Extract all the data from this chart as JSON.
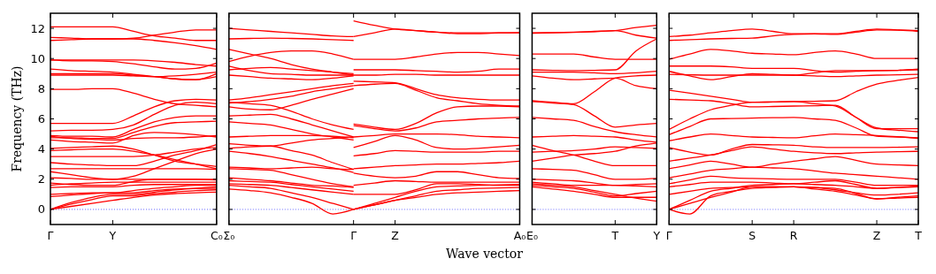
{
  "chart_data": [
    {
      "type": "line",
      "ylabel": "Frequency (THz)",
      "ylim": [
        -1,
        13
      ],
      "yticks": [
        0,
        2,
        4,
        6,
        8,
        10,
        12
      ],
      "categories": [
        "Γ",
        null,
        null,
        "Y",
        null,
        null,
        null,
        null,
        "C₀"
      ],
      "ref_lines": [
        {
          "axis": "y",
          "value": 0,
          "color": "#0000ff",
          "line_style": "dotted"
        }
      ],
      "series": [
        {
          "color": "#ff0000",
          "values": [
            12.1,
            12.1,
            12.1,
            12.1,
            11.8,
            11.5,
            11.35,
            11.2,
            11.2
          ]
        },
        {
          "color": "#ff0000",
          "values": [
            11.4,
            11.35,
            11.3,
            11.3,
            11.35,
            11.55,
            11.75,
            11.9,
            11.9
          ]
        },
        {
          "color": "#ff0000",
          "values": [
            11.2,
            11.25,
            11.3,
            11.3,
            11.3,
            11.2,
            11.05,
            10.85,
            10.6
          ]
        },
        {
          "color": "#ff0000",
          "values": [
            9.9,
            9.9,
            9.9,
            9.9,
            9.9,
            9.85,
            9.75,
            9.6,
            9.5
          ]
        },
        {
          "color": "#ff0000",
          "values": [
            9.9,
            9.85,
            9.85,
            9.8,
            9.65,
            9.45,
            9.3,
            9.35,
            9.7
          ]
        },
        {
          "color": "#ff0000",
          "values": [
            9.3,
            9.2,
            9.15,
            9.1,
            8.95,
            8.8,
            8.65,
            8.6,
            9.0
          ]
        },
        {
          "color": "#ff0000",
          "values": [
            9.0,
            9.0,
            9.0,
            9.0,
            8.9,
            8.8,
            8.65,
            8.6,
            8.8
          ]
        },
        {
          "color": "#ff0000",
          "values": [
            8.9,
            8.9,
            8.9,
            8.9,
            8.85,
            8.8,
            8.85,
            8.95,
            9.1
          ]
        },
        {
          "color": "#ff0000",
          "values": [
            7.95,
            7.95,
            8.0,
            8.0,
            7.7,
            7.3,
            7.0,
            6.9,
            6.8
          ]
        },
        {
          "color": "#ff0000",
          "values": [
            5.7,
            5.7,
            5.7,
            5.7,
            6.2,
            6.8,
            7.2,
            7.3,
            7.25
          ]
        },
        {
          "color": "#ff0000",
          "values": [
            5.2,
            5.25,
            5.25,
            5.3,
            5.6,
            6.3,
            6.9,
            7.1,
            7.0
          ]
        },
        {
          "color": "#ff0000",
          "values": [
            4.9,
            4.85,
            4.85,
            4.8,
            5.3,
            5.8,
            6.1,
            6.2,
            6.2
          ]
        },
        {
          "color": "#ff0000",
          "values": [
            4.75,
            4.75,
            4.7,
            4.7,
            5.1,
            5.5,
            5.75,
            5.8,
            5.85
          ]
        },
        {
          "color": "#ff0000",
          "values": [
            4.6,
            4.5,
            4.45,
            4.4,
            4.9,
            5.1,
            5.05,
            4.95,
            4.8
          ]
        },
        {
          "color": "#ff0000",
          "values": [
            4.85,
            4.7,
            4.65,
            4.6,
            4.7,
            4.75,
            4.75,
            4.8,
            4.9
          ]
        },
        {
          "color": "#ff0000",
          "values": [
            4.05,
            4.1,
            4.15,
            4.2,
            4.0,
            3.6,
            3.2,
            3.0,
            2.85
          ]
        },
        {
          "color": "#ff0000",
          "values": [
            3.9,
            3.95,
            4.0,
            4.0,
            3.85,
            3.6,
            3.3,
            3.0,
            2.7
          ]
        },
        {
          "color": "#ff0000",
          "values": [
            3.5,
            3.5,
            3.5,
            3.5,
            3.5,
            3.6,
            3.8,
            4.0,
            4.1
          ]
        },
        {
          "color": "#ff0000",
          "values": [
            3.1,
            3.0,
            2.95,
            2.9,
            2.9,
            3.2,
            3.6,
            3.9,
            4.3
          ]
        },
        {
          "color": "#ff0000",
          "values": [
            2.7,
            2.7,
            2.7,
            2.7,
            2.7,
            2.7,
            2.7,
            2.7,
            2.65
          ]
        },
        {
          "color": "#ff0000",
          "values": [
            2.5,
            2.3,
            2.1,
            2.0,
            2.2,
            2.7,
            3.2,
            3.7,
            4.0
          ]
        },
        {
          "color": "#ff0000",
          "values": [
            2.1,
            2.05,
            2.0,
            2.0,
            2.0,
            2.0,
            2.0,
            2.0,
            2.0
          ]
        },
        {
          "color": "#ff0000",
          "values": [
            1.75,
            1.65,
            1.6,
            1.6,
            1.85,
            2.0,
            2.0,
            2.0,
            1.95
          ]
        },
        {
          "color": "#ff0000",
          "values": [
            1.6,
            1.7,
            1.75,
            1.8,
            1.8,
            1.8,
            1.8,
            1.8,
            1.8
          ]
        },
        {
          "color": "#ff0000",
          "values": [
            1.45,
            1.5,
            1.5,
            1.5,
            1.6,
            1.65,
            1.65,
            1.65,
            1.65
          ]
        },
        {
          "color": "#ff0000",
          "values": [
            1.0,
            1.05,
            1.1,
            1.1,
            1.25,
            1.4,
            1.5,
            1.6,
            1.6
          ]
        },
        {
          "color": "#ff0000",
          "values": [
            0.85,
            0.95,
            1.05,
            1.1,
            1.1,
            1.25,
            1.35,
            1.4,
            1.4
          ]
        },
        {
          "color": "#ff0000",
          "values": [
            0,
            0.45,
            0.8,
            1.0,
            1.0,
            1.15,
            1.3,
            1.4,
            1.5
          ]
        },
        {
          "color": "#ff0000",
          "values": [
            0,
            0.35,
            0.65,
            0.9,
            0.9,
            1.05,
            1.15,
            1.25,
            1.3
          ]
        },
        {
          "color": "#ff0000",
          "values": [
            0,
            0.2,
            0.4,
            0.6,
            0.8,
            0.95,
            1.05,
            1.1,
            1.15
          ]
        }
      ]
    },
    {
      "type": "line",
      "tick_labels": "x",
      "ylim": [
        -1,
        13
      ],
      "yticks": [
        0,
        2,
        4,
        6,
        8,
        10,
        12
      ],
      "categories": [
        "Σ₀",
        null,
        null,
        null,
        null,
        null,
        "Γ",
        null,
        "Z",
        null,
        null,
        null,
        null,
        null,
        "A₀"
      ],
      "ref_lines": [
        {
          "axis": "y",
          "value": 0,
          "color": "#0000ff",
          "line_style": "dotted"
        }
      ],
      "series": [
        {
          "color": "#ff0000",
          "values": [
            12.0,
            11.9,
            11.8,
            11.7,
            11.6,
            11.5,
            11.45,
            null,
            null,
            null,
            null,
            null,
            null,
            null,
            null
          ]
        },
        {
          "color": "#ff0000",
          "values": [
            11.3,
            11.33,
            11.35,
            11.33,
            11.3,
            11.25,
            11.2,
            null,
            null,
            null,
            null,
            null,
            null,
            null,
            null
          ]
        },
        {
          "color": "#ff0000",
          "values": [
            10.6,
            10.3,
            10.0,
            9.6,
            9.3,
            9.1,
            8.9,
            null,
            null,
            null,
            null,
            null,
            null,
            null,
            null
          ]
        },
        {
          "color": "#ff0000",
          "values": [
            9.8,
            10.15,
            10.4,
            10.5,
            10.5,
            10.3,
            9.95,
            null,
            null,
            null,
            null,
            null,
            null,
            null,
            null
          ]
        },
        {
          "color": "#ff0000",
          "values": [
            9.5,
            9.2,
            9.0,
            8.95,
            8.9,
            8.9,
            8.9,
            null,
            null,
            null,
            null,
            null,
            null,
            null,
            null
          ]
        },
        {
          "color": "#ff0000",
          "values": [
            9.25,
            9.35,
            9.4,
            9.3,
            9.2,
            9.1,
            9.0,
            null,
            null,
            null,
            null,
            null,
            null,
            null,
            null
          ]
        },
        {
          "color": "#ff0000",
          "values": [
            8.9,
            8.8,
            8.7,
            8.65,
            8.6,
            8.7,
            8.85,
            null,
            null,
            null,
            null,
            null,
            null,
            null,
            null
          ]
        },
        {
          "color": "#ff0000",
          "values": [
            7.25,
            7.4,
            7.6,
            7.8,
            8.0,
            8.2,
            8.35,
            null,
            null,
            null,
            null,
            null,
            null,
            null,
            null
          ]
        },
        {
          "color": "#ff0000",
          "values": [
            7.05,
            7.15,
            7.3,
            7.5,
            7.8,
            8.0,
            8.2,
            null,
            null,
            null,
            null,
            null,
            null,
            null,
            null
          ]
        },
        {
          "color": "#ff0000",
          "values": [
            6.8,
            6.65,
            6.6,
            6.9,
            7.3,
            7.65,
            8.0,
            null,
            null,
            null,
            null,
            null,
            null,
            null,
            null
          ]
        },
        {
          "color": "#ff0000",
          "values": [
            7.1,
            7.0,
            6.9,
            6.5,
            6.0,
            5.6,
            5.3,
            null,
            null,
            null,
            null,
            null,
            null,
            null,
            null
          ]
        },
        {
          "color": "#ff0000",
          "values": [
            6.2,
            6.25,
            6.3,
            6.0,
            5.6,
            5.2,
            4.8,
            null,
            null,
            null,
            null,
            null,
            null,
            null,
            null
          ]
        },
        {
          "color": "#ff0000",
          "values": [
            5.8,
            5.7,
            5.6,
            5.3,
            5.0,
            4.8,
            4.6,
            null,
            null,
            null,
            null,
            null,
            null,
            null,
            null
          ]
        },
        {
          "color": "#ff0000",
          "values": [
            4.8,
            4.85,
            4.9,
            4.9,
            4.9,
            4.85,
            4.75,
            null,
            null,
            null,
            null,
            null,
            null,
            null,
            null
          ]
        },
        {
          "color": "#ff0000",
          "values": [
            4.35,
            4.25,
            4.2,
            4.4,
            4.6,
            4.7,
            4.8,
            null,
            null,
            null,
            null,
            null,
            null,
            null,
            null
          ]
        },
        {
          "color": "#ff0000",
          "values": [
            4.05,
            4.15,
            4.2,
            3.9,
            3.6,
            3.1,
            2.65,
            null,
            null,
            null,
            null,
            null,
            null,
            null,
            null
          ]
        },
        {
          "color": "#ff0000",
          "values": [
            3.85,
            3.7,
            3.5,
            3.25,
            3.0,
            2.75,
            2.45,
            null,
            null,
            null,
            null,
            null,
            null,
            null,
            null
          ]
        },
        {
          "color": "#ff0000",
          "values": [
            2.8,
            2.75,
            2.7,
            2.75,
            2.8,
            2.7,
            2.65,
            null,
            null,
            null,
            null,
            null,
            null,
            null,
            null
          ]
        },
        {
          "color": "#ff0000",
          "values": [
            2.7,
            2.65,
            2.6,
            2.3,
            2.0,
            1.7,
            1.5,
            null,
            null,
            null,
            null,
            null,
            null,
            null,
            null
          ]
        },
        {
          "color": "#ff0000",
          "values": [
            2.1,
            2.0,
            1.9,
            1.75,
            1.6,
            1.55,
            1.45,
            null,
            null,
            null,
            null,
            null,
            null,
            null,
            null
          ]
        },
        {
          "color": "#ff0000",
          "values": [
            1.9,
            1.85,
            1.8,
            1.65,
            1.5,
            1.35,
            1.2,
            null,
            null,
            null,
            null,
            null,
            null,
            null,
            null
          ]
        },
        {
          "color": "#ff0000",
          "values": [
            1.7,
            1.65,
            1.6,
            1.45,
            1.3,
            1.15,
            1.0,
            null,
            null,
            null,
            null,
            null,
            null,
            null,
            null
          ]
        },
        {
          "color": "#ff0000",
          "values": [
            1.6,
            1.5,
            1.4,
            1.1,
            0.8,
            0.4,
            0,
            null,
            null,
            null,
            null,
            null,
            null,
            null,
            null
          ]
        },
        {
          "color": "#ff0000",
          "values": [
            1.35,
            1.25,
            1.1,
            0.8,
            0.4,
            -0.3,
            0,
            null,
            null,
            null,
            null,
            null,
            null,
            null,
            null
          ]
        },
        {
          "color": "#ff0000",
          "values": [
            null,
            null,
            null,
            null,
            null,
            null,
            12.5,
            12.2,
            11.95,
            11.85,
            11.75,
            11.7,
            11.7,
            11.7,
            11.7
          ]
        },
        {
          "color": "#ff0000",
          "values": [
            null,
            null,
            null,
            null,
            null,
            null,
            11.45,
            11.7,
            11.95,
            11.85,
            11.75,
            11.65,
            11.65,
            11.7,
            11.72
          ]
        },
        {
          "color": "#ff0000",
          "values": [
            null,
            null,
            null,
            null,
            null,
            null,
            9.95,
            9.95,
            9.95,
            10.1,
            10.3,
            10.4,
            10.4,
            10.3,
            10.2
          ]
        },
        {
          "color": "#ff0000",
          "values": [
            null,
            null,
            null,
            null,
            null,
            null,
            9.25,
            9.25,
            9.25,
            9.2,
            9.15,
            9.1,
            9.15,
            9.3,
            9.3
          ]
        },
        {
          "color": "#ff0000",
          "values": [
            null,
            null,
            null,
            null,
            null,
            null,
            8.9,
            8.9,
            8.95,
            8.95,
            8.9,
            8.9,
            8.9,
            8.9,
            8.9
          ]
        },
        {
          "color": "#ff0000",
          "values": [
            null,
            null,
            null,
            null,
            null,
            null,
            8.5,
            8.45,
            8.4,
            8.0,
            7.6,
            7.4,
            7.3,
            7.25,
            7.25
          ]
        },
        {
          "color": "#ff0000",
          "values": [
            null,
            null,
            null,
            null,
            null,
            null,
            8.2,
            8.3,
            8.35,
            7.9,
            7.4,
            7.2,
            7.0,
            6.9,
            6.85
          ]
        },
        {
          "color": "#ff0000",
          "values": [
            null,
            null,
            null,
            null,
            null,
            null,
            5.65,
            5.45,
            5.3,
            5.7,
            6.4,
            6.8,
            6.85,
            6.85,
            6.8
          ]
        },
        {
          "color": "#ff0000",
          "values": [
            null,
            null,
            null,
            null,
            null,
            null,
            5.55,
            5.35,
            5.2,
            5.4,
            5.8,
            5.9,
            6.0,
            6.05,
            6.1
          ]
        },
        {
          "color": "#ff0000",
          "values": [
            null,
            null,
            null,
            null,
            null,
            null,
            4.8,
            4.9,
            5.0,
            5.0,
            5.0,
            4.95,
            4.85,
            4.8,
            4.75
          ]
        },
        {
          "color": "#ff0000",
          "values": [
            null,
            null,
            null,
            null,
            null,
            null,
            4.1,
            4.5,
            4.9,
            4.6,
            4.1,
            4.0,
            4.05,
            4.15,
            4.25
          ]
        },
        {
          "color": "#ff0000",
          "values": [
            null,
            null,
            null,
            null,
            null,
            null,
            3.55,
            3.7,
            3.9,
            3.85,
            3.8,
            3.8,
            3.8,
            3.85,
            3.85
          ]
        },
        {
          "color": "#ff0000",
          "values": [
            null,
            null,
            null,
            null,
            null,
            null,
            2.7,
            2.8,
            2.9,
            2.95,
            3.0,
            3.0,
            3.05,
            3.1,
            3.2
          ]
        },
        {
          "color": "#ff0000",
          "values": [
            null,
            null,
            null,
            null,
            null,
            null,
            2.4,
            2.2,
            2.1,
            2.2,
            2.5,
            2.5,
            2.3,
            2.1,
            2.05
          ]
        },
        {
          "color": "#ff0000",
          "values": [
            null,
            null,
            null,
            null,
            null,
            null,
            1.6,
            1.75,
            1.9,
            1.85,
            1.8,
            1.8,
            1.8,
            1.8,
            1.8
          ]
        },
        {
          "color": "#ff0000",
          "values": [
            null,
            null,
            null,
            null,
            null,
            null,
            1.0,
            1.0,
            1.0,
            1.3,
            1.7,
            1.7,
            1.65,
            1.6,
            1.6
          ]
        },
        {
          "color": "#ff0000",
          "values": [
            null,
            null,
            null,
            null,
            null,
            null,
            0,
            0.4,
            0.8,
            1.2,
            1.5,
            1.55,
            1.6,
            1.62,
            1.65
          ]
        },
        {
          "color": "#ff0000",
          "values": [
            null,
            null,
            null,
            null,
            null,
            null,
            0,
            0.3,
            0.6,
            0.9,
            1.2,
            1.3,
            1.4,
            1.42,
            1.45
          ]
        },
        {
          "color": "#ff0000",
          "values": [
            null,
            null,
            null,
            null,
            null,
            null,
            0,
            0.3,
            0.6,
            0.8,
            1.0,
            1.1,
            1.15,
            1.2,
            1.25
          ]
        }
      ]
    },
    {
      "type": "line",
      "tick_labels": "x",
      "xlabel": "Wave vector",
      "ylim": [
        -1,
        13
      ],
      "yticks": [
        0,
        2,
        4,
        6,
        8,
        10,
        12
      ],
      "categories": [
        "E₀",
        null,
        null,
        null,
        "T",
        null,
        "Y"
      ],
      "ref_lines": [
        {
          "axis": "y",
          "value": 0,
          "color": "#0000ff",
          "line_style": "dotted"
        }
      ],
      "series": [
        {
          "color": "#ff0000",
          "values": [
            11.7,
            11.72,
            11.75,
            11.8,
            11.85,
            12.05,
            12.2
          ]
        },
        {
          "color": "#ff0000",
          "values": [
            11.68,
            11.7,
            11.73,
            11.78,
            11.85,
            11.55,
            11.35
          ]
        },
        {
          "color": "#ff0000",
          "values": [
            10.3,
            10.3,
            10.3,
            10.1,
            9.95,
            9.95,
            9.95
          ]
        },
        {
          "color": "#ff0000",
          "values": [
            9.25,
            9.22,
            9.2,
            9.22,
            9.25,
            10.5,
            11.3
          ]
        },
        {
          "color": "#ff0000",
          "values": [
            8.85,
            8.7,
            8.6,
            8.65,
            8.7,
            8.2,
            8.0
          ]
        },
        {
          "color": "#ff0000",
          "values": [
            9.1,
            9.1,
            9.1,
            9.05,
            9.0,
            9.05,
            9.15
          ]
        },
        {
          "color": "#ff0000",
          "values": [
            7.2,
            7.1,
            7.0,
            7.8,
            8.7,
            8.85,
            8.9
          ]
        },
        {
          "color": "#ff0000",
          "values": [
            7.15,
            7.05,
            6.95,
            6.2,
            5.45,
            5.6,
            5.7
          ]
        },
        {
          "color": "#ff0000",
          "values": [
            6.1,
            6.0,
            5.9,
            5.5,
            5.15,
            4.95,
            4.8
          ]
        },
        {
          "color": "#ff0000",
          "values": [
            4.8,
            4.85,
            4.9,
            4.85,
            4.8,
            4.6,
            4.45
          ]
        },
        {
          "color": "#ff0000",
          "values": [
            4.25,
            3.9,
            3.6,
            3.2,
            2.9,
            2.9,
            2.9
          ]
        },
        {
          "color": "#ff0000",
          "values": [
            3.8,
            3.85,
            3.9,
            4.0,
            4.15,
            4.1,
            4.05
          ]
        },
        {
          "color": "#ff0000",
          "values": [
            3.2,
            3.4,
            3.6,
            3.7,
            3.85,
            4.2,
            4.4
          ]
        },
        {
          "color": "#ff0000",
          "values": [
            2.7,
            2.65,
            2.6,
            2.3,
            2.0,
            2.0,
            2.05
          ]
        },
        {
          "color": "#ff0000",
          "values": [
            2.0,
            1.95,
            1.9,
            1.75,
            1.6,
            1.65,
            1.7
          ]
        },
        {
          "color": "#ff0000",
          "values": [
            1.8,
            1.7,
            1.6,
            1.6,
            1.6,
            1.55,
            1.5
          ]
        },
        {
          "color": "#ff0000",
          "values": [
            1.6,
            1.5,
            1.4,
            1.15,
            0.9,
            1.05,
            1.2
          ]
        },
        {
          "color": "#ff0000",
          "values": [
            1.5,
            1.35,
            1.2,
            1.0,
            0.8,
            0.8,
            0.8
          ]
        },
        {
          "color": "#ff0000",
          "values": [
            1.7,
            1.6,
            1.5,
            1.25,
            1.0,
            0.75,
            0.55
          ]
        }
      ]
    },
    {
      "type": "line",
      "tick_labels": "x",
      "ylim": [
        -1,
        13
      ],
      "yticks": [
        0,
        2,
        4,
        6,
        8,
        10,
        12
      ],
      "categories": [
        "Γ",
        null,
        null,
        null,
        "S",
        null,
        "R",
        null,
        null,
        null,
        "Z",
        null,
        "T"
      ],
      "ref_lines": [
        {
          "axis": "y",
          "value": 0,
          "color": "#0000ff",
          "line_style": "dotted"
        }
      ],
      "series": [
        {
          "color": "#ff0000",
          "values": [
            11.45,
            11.55,
            11.7,
            11.85,
            11.95,
            11.8,
            11.65,
            11.65,
            11.65,
            11.8,
            11.95,
            11.9,
            11.85
          ]
        },
        {
          "color": "#ff0000",
          "values": [
            11.2,
            11.25,
            11.3,
            11.33,
            11.35,
            11.5,
            11.6,
            11.63,
            11.6,
            11.75,
            11.9,
            11.88,
            11.8
          ]
        },
        {
          "color": "#ff0000",
          "values": [
            9.95,
            10.3,
            10.6,
            10.5,
            10.35,
            10.3,
            10.25,
            10.4,
            10.5,
            10.3,
            10.0,
            10.0,
            10.0
          ]
        },
        {
          "color": "#ff0000",
          "values": [
            9.5,
            9.5,
            9.5,
            9.45,
            9.35,
            9.35,
            9.35,
            9.2,
            9.1,
            9.15,
            9.2,
            9.22,
            9.25
          ]
        },
        {
          "color": "#ff0000",
          "values": [
            9.15,
            8.85,
            8.6,
            8.8,
            9.0,
            8.95,
            8.9,
            8.85,
            8.8,
            8.85,
            8.9,
            8.92,
            8.95
          ]
        },
        {
          "color": "#ff0000",
          "values": [
            8.95,
            8.92,
            8.9,
            8.9,
            8.9,
            8.9,
            8.9,
            9.05,
            9.2,
            9.2,
            9.2,
            9.22,
            9.3
          ]
        },
        {
          "color": "#ff0000",
          "values": [
            7.9,
            7.7,
            7.5,
            7.3,
            7.1,
            7.12,
            7.15,
            7.17,
            7.2,
            7.8,
            8.3,
            8.55,
            8.75
          ]
        },
        {
          "color": "#ff0000",
          "values": [
            7.3,
            7.25,
            7.2,
            7.0,
            6.8,
            6.82,
            6.85,
            6.87,
            6.9,
            6.1,
            5.35,
            5.35,
            5.35
          ]
        },
        {
          "color": "#ff0000",
          "values": [
            5.3,
            6.0,
            6.6,
            6.9,
            7.1,
            7.12,
            7.15,
            7.0,
            6.85,
            6.1,
            5.4,
            5.25,
            5.15
          ]
        },
        {
          "color": "#ff0000",
          "values": [
            4.95,
            5.5,
            6.0,
            6.02,
            6.05,
            6.08,
            6.1,
            6.0,
            5.9,
            5.4,
            4.85,
            4.8,
            4.75
          ]
        },
        {
          "color": "#ff0000",
          "values": [
            4.55,
            4.8,
            5.0,
            4.9,
            4.8,
            4.77,
            4.75,
            4.88,
            5.0,
            4.95,
            4.9,
            4.82,
            4.7
          ]
        },
        {
          "color": "#ff0000",
          "values": [
            4.1,
            3.8,
            3.6,
            4.0,
            4.3,
            4.28,
            4.25,
            4.15,
            4.1,
            4.1,
            4.1,
            4.12,
            4.15
          ]
        },
        {
          "color": "#ff0000",
          "values": [
            3.2,
            3.4,
            3.6,
            3.9,
            4.15,
            4.0,
            3.85,
            3.75,
            3.7,
            3.75,
            3.8,
            3.82,
            3.85
          ]
        },
        {
          "color": "#ff0000",
          "values": [
            2.7,
            2.95,
            3.2,
            3.0,
            2.8,
            3.0,
            3.2,
            3.35,
            3.5,
            3.25,
            3.0,
            2.95,
            2.9
          ]
        },
        {
          "color": "#ff0000",
          "values": [
            2.1,
            2.35,
            2.6,
            2.7,
            2.8,
            2.75,
            2.7,
            2.55,
            2.4,
            2.3,
            2.2,
            2.1,
            2.0
          ]
        },
        {
          "color": "#ff0000",
          "values": [
            1.7,
            1.95,
            2.2,
            2.1,
            2.05,
            2.02,
            2.0,
            2.0,
            2.0,
            1.8,
            1.6,
            1.6,
            1.6
          ]
        },
        {
          "color": "#ff0000",
          "values": [
            1.5,
            1.65,
            1.8,
            1.8,
            1.8,
            1.75,
            1.7,
            1.8,
            1.9,
            1.65,
            1.4,
            1.45,
            1.5
          ]
        },
        {
          "color": "#ff0000",
          "values": [
            1.0,
            1.2,
            1.4,
            1.45,
            1.5,
            1.5,
            1.5,
            1.45,
            1.4,
            1.05,
            0.7,
            0.8,
            0.9
          ]
        },
        {
          "color": "#ff0000",
          "values": [
            0,
            0.6,
            1.2,
            1.4,
            1.6,
            1.65,
            1.7,
            1.65,
            1.6,
            1.5,
            1.4,
            1.45,
            1.55
          ]
        },
        {
          "color": "#ff0000",
          "values": [
            0,
            0.4,
            0.8,
            1.15,
            1.5,
            1.5,
            1.5,
            1.35,
            1.2,
            0.95,
            0.7,
            0.75,
            0.8
          ]
        },
        {
          "color": "#ff0000",
          "values": [
            0,
            -0.3,
            0.9,
            1.2,
            1.4,
            1.45,
            1.5,
            1.45,
            1.3,
            1.1,
            0.95,
            1.0,
            1.1
          ]
        }
      ]
    }
  ]
}
